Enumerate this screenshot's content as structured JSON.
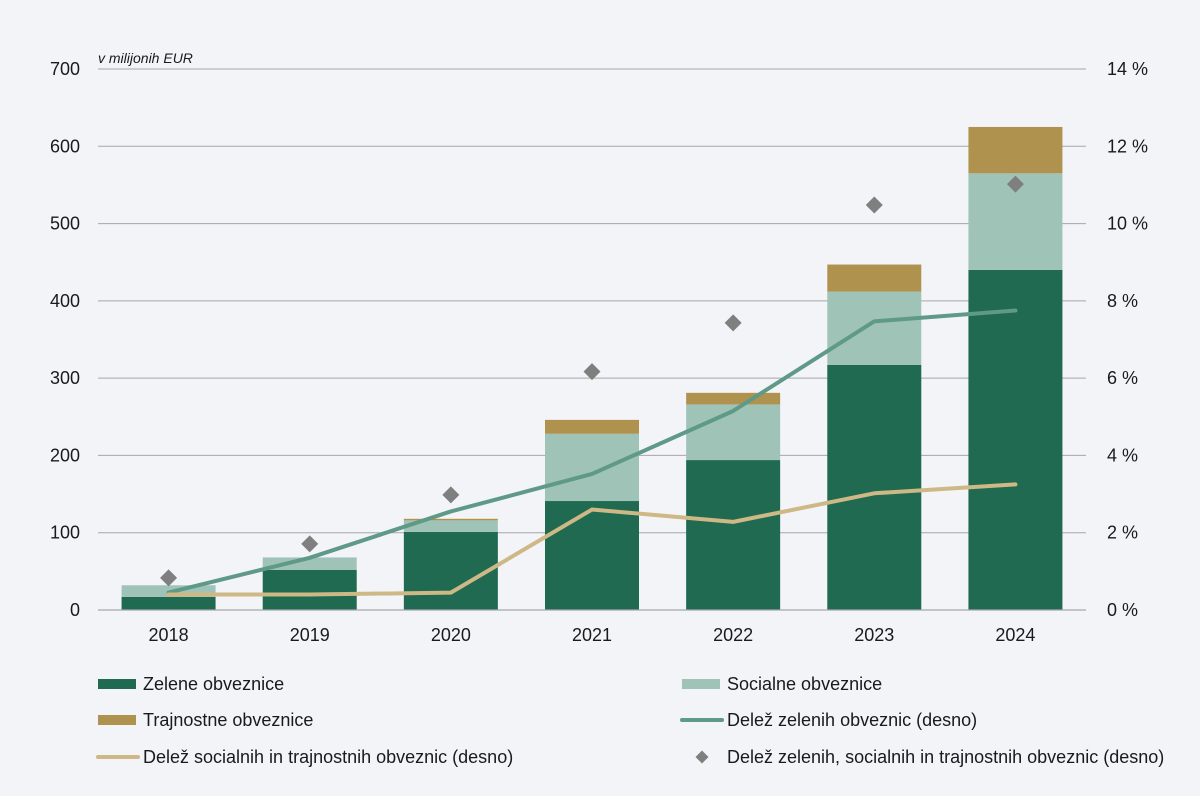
{
  "chart_data": {
    "type": "bar",
    "stacked": true,
    "unit_label": "v milijonih EUR",
    "categories": [
      "2018",
      "2019",
      "2020",
      "2021",
      "2022",
      "2023",
      "2024"
    ],
    "ylim": [
      0,
      700
    ],
    "y_ticks": [
      "0",
      "100",
      "200",
      "300",
      "400",
      "500",
      "600",
      "700"
    ],
    "y2lim": [
      0,
      14
    ],
    "y2_ticks": [
      "0 %",
      "2 %",
      "4 %",
      "6 %",
      "8 %",
      "10 %",
      "12 %",
      "14 %"
    ],
    "colors": {
      "green_bonds": "#1f6a50",
      "social_bonds": "#a0c3b7",
      "sustainability_bonds": "#b0924f",
      "green_share": "#5f9987",
      "social_sust_share": "#cdb886",
      "total_share": "#7f7f7f",
      "grid": "#a6a6a6"
    },
    "series": [
      {
        "name": "Zelene obveznice",
        "kind": "bar",
        "axis": "left",
        "values": [
          17,
          52,
          101,
          141,
          194,
          317,
          440
        ]
      },
      {
        "name": "Socialne obveznice",
        "kind": "bar",
        "axis": "left",
        "values": [
          15,
          16,
          15,
          87,
          72,
          95,
          125
        ]
      },
      {
        "name": "Trajnostne obveznice",
        "kind": "bar",
        "axis": "left",
        "values": [
          0,
          0,
          2,
          18,
          15,
          35,
          60
        ]
      },
      {
        "name": "Delež zelenih obveznic (desno)",
        "kind": "line",
        "axis": "right",
        "values": [
          0.45,
          1.35,
          2.55,
          3.52,
          5.15,
          7.47,
          7.75
        ]
      },
      {
        "name": "Delež socialnih in trajnostnih obveznic (desno)",
        "kind": "line",
        "axis": "right",
        "values": [
          0.4,
          0.4,
          0.45,
          2.6,
          2.28,
          3.02,
          3.25
        ]
      },
      {
        "name": "Delež zelenih, socialnih in trajnostnih obveznic (desno)",
        "kind": "scatter",
        "axis": "right",
        "values": [
          0.83,
          1.71,
          2.98,
          6.17,
          7.43,
          10.48,
          11.02
        ]
      }
    ]
  }
}
